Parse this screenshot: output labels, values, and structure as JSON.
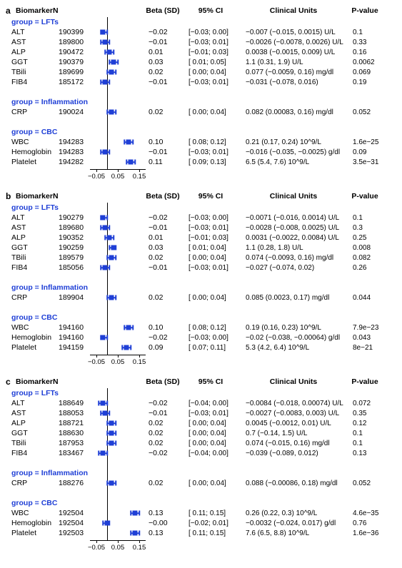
{
  "plot": {
    "xmin": -0.08,
    "xmax": 0.18,
    "ticks": [
      -0.05,
      0.05,
      0.15
    ],
    "zero_line": 0,
    "marker_color": "#1f3fd6",
    "axis_color": "#000000"
  },
  "headers": {
    "biomarker": "Biomarker",
    "n": "N",
    "beta": "Beta (SD)",
    "ci": "95% CI",
    "cu": "Clinical Units",
    "p": "P-value"
  },
  "group_names": {
    "lfts": "group = LFTs",
    "infl": "group = Inflammation",
    "cbc": "group = CBC"
  },
  "panels": [
    {
      "label": "a",
      "groups": [
        {
          "key": "lfts",
          "rows": [
            {
              "bio": "ALT",
              "n": "190399",
              "beta": -0.02,
              "lo": -0.03,
              "hi": 0.0,
              "beta_s": "−0.02",
              "ci": "[−0.03; 0.00]",
              "cu": "−0.007 (−0.015, 0.0015) U/L",
              "p": "0.1"
            },
            {
              "bio": "AST",
              "n": "189800",
              "beta": -0.01,
              "lo": -0.03,
              "hi": 0.01,
              "beta_s": "−0.01",
              "ci": "[−0.03; 0.01]",
              "cu": "−0.0026 (−0.0078, 0.0026) U/L",
              "p": "0.33"
            },
            {
              "bio": "ALP",
              "n": "190472",
              "beta": 0.01,
              "lo": -0.01,
              "hi": 0.03,
              "beta_s": "0.01",
              "ci": "[−0.01; 0.03]",
              "cu": "0.0038 (−0.0015, 0.009) U/L",
              "p": "0.16"
            },
            {
              "bio": "GGT",
              "n": "190379",
              "beta": 0.03,
              "lo": 0.01,
              "hi": 0.05,
              "beta_s": "0.03",
              "ci": "[ 0.01; 0.05]",
              "cu": "1.1 (0.31, 1.9) U/L",
              "p": "0.0062"
            },
            {
              "bio": "TBili",
              "n": "189699",
              "beta": 0.02,
              "lo": 0.0,
              "hi": 0.04,
              "beta_s": "0.02",
              "ci": "[ 0.00; 0.04]",
              "cu": "0.077 (−0.0059, 0.16) mg/dl",
              "p": "0.069"
            },
            {
              "bio": "FIB4",
              "n": "185172",
              "beta": -0.01,
              "lo": -0.03,
              "hi": 0.01,
              "beta_s": "−0.01",
              "ci": "[−0.03; 0.01]",
              "cu": "−0.031 (−0.078, 0.016)",
              "p": "0.19"
            }
          ]
        },
        {
          "key": "infl",
          "rows": [
            {
              "bio": "CRP",
              "n": "190024",
              "beta": 0.02,
              "lo": 0.0,
              "hi": 0.04,
              "beta_s": "0.02",
              "ci": "[ 0.00; 0.04]",
              "cu": "0.082 (0.00083, 0.16) mg/dl",
              "p": "0.052"
            }
          ]
        },
        {
          "key": "cbc",
          "rows": [
            {
              "bio": "WBC",
              "n": "194283",
              "beta": 0.1,
              "lo": 0.08,
              "hi": 0.12,
              "beta_s": "0.10",
              "ci": "[ 0.08; 0.12]",
              "cu": "0.21 (0.17, 0.24) 10^9/L",
              "p": "1.6e−25"
            },
            {
              "bio": "Hemoglobin",
              "n": "194283",
              "beta": -0.01,
              "lo": -0.03,
              "hi": 0.01,
              "beta_s": "−0.01",
              "ci": "[−0.03; 0.01]",
              "cu": "−0.016 (−0.035, −0.0025) g/dl",
              "p": "0.09"
            },
            {
              "bio": "Platelet",
              "n": "194282",
              "beta": 0.11,
              "lo": 0.09,
              "hi": 0.13,
              "beta_s": "0.11",
              "ci": "[ 0.09; 0.13]",
              "cu": "6.5 (5.4, 7.6) 10^9/L",
              "p": "3.5e−31"
            }
          ]
        }
      ]
    },
    {
      "label": "b",
      "groups": [
        {
          "key": "lfts",
          "rows": [
            {
              "bio": "ALT",
              "n": "190279",
              "beta": -0.02,
              "lo": -0.03,
              "hi": 0.0,
              "beta_s": "−0.02",
              "ci": "[−0.03; 0.00]",
              "cu": "−0.0071 (−0.016, 0.0014) U/L",
              "p": "0.1"
            },
            {
              "bio": "AST",
              "n": "189680",
              "beta": -0.01,
              "lo": -0.03,
              "hi": 0.01,
              "beta_s": "−0.01",
              "ci": "[−0.03; 0.01]",
              "cu": "−0.0028 (−0.008, 0.0025) U/L",
              "p": "0.3"
            },
            {
              "bio": "ALP",
              "n": "190352",
              "beta": 0.01,
              "lo": -0.01,
              "hi": 0.03,
              "beta_s": "0.01",
              "ci": "[−0.01; 0.03]",
              "cu": "0.0031 (−0.0022, 0.0084) U/L",
              "p": "0.25"
            },
            {
              "bio": "GGT",
              "n": "190259",
              "beta": 0.03,
              "lo": 0.01,
              "hi": 0.04,
              "beta_s": "0.03",
              "ci": "[ 0.01; 0.04]",
              "cu": "1.1 (0.28, 1.8) U/L",
              "p": "0.008"
            },
            {
              "bio": "TBili",
              "n": "189579",
              "beta": 0.02,
              "lo": 0.0,
              "hi": 0.04,
              "beta_s": "0.02",
              "ci": "[ 0.00; 0.04]",
              "cu": "0.074 (−0.0093, 0.16) mg/dl",
              "p": "0.082"
            },
            {
              "bio": "FIB4",
              "n": "185056",
              "beta": -0.01,
              "lo": -0.03,
              "hi": 0.01,
              "beta_s": "−0.01",
              "ci": "[−0.03; 0.01]",
              "cu": "−0.027 (−0.074, 0.02)",
              "p": "0.26"
            }
          ]
        },
        {
          "key": "infl",
          "rows": [
            {
              "bio": "CRP",
              "n": "189904",
              "beta": 0.02,
              "lo": 0.0,
              "hi": 0.04,
              "beta_s": "0.02",
              "ci": "[ 0.00; 0.04]",
              "cu": "0.085 (0.0023, 0.17) mg/dl",
              "p": "0.044"
            }
          ]
        },
        {
          "key": "cbc",
          "rows": [
            {
              "bio": "WBC",
              "n": "194160",
              "beta": 0.1,
              "lo": 0.08,
              "hi": 0.12,
              "beta_s": "0.10",
              "ci": "[ 0.08; 0.12]",
              "cu": "0.19 (0.16, 0.23) 10^9/L",
              "p": "7.9e−23"
            },
            {
              "bio": "Hemoglobin",
              "n": "194160",
              "beta": -0.02,
              "lo": -0.03,
              "hi": 0.0,
              "beta_s": "−0.02",
              "ci": "[−0.03; 0.00]",
              "cu": "−0.02 (−0.038, −0.00064) g/dl",
              "p": "0.043"
            },
            {
              "bio": "Platelet",
              "n": "194159",
              "beta": 0.09,
              "lo": 0.07,
              "hi": 0.11,
              "beta_s": "0.09",
              "ci": "[ 0.07; 0.11]",
              "cu": "5.3 (4.2, 6.4) 10^9/L",
              "p": "8e−21"
            }
          ]
        }
      ]
    },
    {
      "label": "c",
      "groups": [
        {
          "key": "lfts",
          "rows": [
            {
              "bio": "ALT",
              "n": "188649",
              "beta": -0.02,
              "lo": -0.04,
              "hi": 0.0,
              "beta_s": "−0.02",
              "ci": "[−0.04; 0.00]",
              "cu": "−0.0084 (−0.018, 0.00074) U/L",
              "p": "0.072"
            },
            {
              "bio": "AST",
              "n": "188053",
              "beta": -0.01,
              "lo": -0.03,
              "hi": 0.01,
              "beta_s": "−0.01",
              "ci": "[−0.03; 0.01]",
              "cu": "−0.0027 (−0.0083, 0.003) U/L",
              "p": "0.35"
            },
            {
              "bio": "ALP",
              "n": "188721",
              "beta": 0.02,
              "lo": 0.0,
              "hi": 0.04,
              "beta_s": "0.02",
              "ci": "[ 0.00; 0.04]",
              "cu": "0.0045 (−0.0012, 0.01) U/L",
              "p": "0.12"
            },
            {
              "bio": "GGT",
              "n": "188630",
              "beta": 0.02,
              "lo": 0.0,
              "hi": 0.04,
              "beta_s": "0.02",
              "ci": "[ 0.00; 0.04]",
              "cu": "0.7 (−0.14, 1.5) U/L",
              "p": "0.1"
            },
            {
              "bio": "TBili",
              "n": "187953",
              "beta": 0.02,
              "lo": 0.0,
              "hi": 0.04,
              "beta_s": "0.02",
              "ci": "[ 0.00; 0.04]",
              "cu": "0.074 (−0.015, 0.16) mg/dl",
              "p": "0.1"
            },
            {
              "bio": "FIB4",
              "n": "183467",
              "beta": -0.02,
              "lo": -0.04,
              "hi": 0.0,
              "beta_s": "−0.02",
              "ci": "[−0.04; 0.00]",
              "cu": "−0.039 (−0.089, 0.012)",
              "p": "0.13"
            }
          ]
        },
        {
          "key": "infl",
          "rows": [
            {
              "bio": "CRP",
              "n": "188276",
              "beta": 0.02,
              "lo": 0.0,
              "hi": 0.04,
              "beta_s": "0.02",
              "ci": "[ 0.00; 0.04]",
              "cu": "0.088 (−0.00086, 0.18) mg/dl",
              "p": "0.052"
            }
          ]
        },
        {
          "key": "cbc",
          "rows": [
            {
              "bio": "WBC",
              "n": "192504",
              "beta": 0.13,
              "lo": 0.11,
              "hi": 0.15,
              "beta_s": "0.13",
              "ci": "[ 0.11; 0.15]",
              "cu": "0.26 (0.22, 0.3) 10^9/L",
              "p": "4.6e−35"
            },
            {
              "bio": "Hemoglobin",
              "n": "192504",
              "beta": 0.0,
              "lo": -0.02,
              "hi": 0.01,
              "beta_s": "−0.00",
              "ci": "[−0.02; 0.01]",
              "cu": "−0.0032 (−0.024, 0.017) g/dl",
              "p": "0.76"
            },
            {
              "bio": "Platelet",
              "n": "192503",
              "beta": 0.13,
              "lo": 0.11,
              "hi": 0.15,
              "beta_s": "0.13",
              "ci": "[ 0.11; 0.15]",
              "cu": "7.6 (6.5, 8.8) 10^9/L",
              "p": "1.6e−36"
            }
          ]
        }
      ]
    }
  ]
}
